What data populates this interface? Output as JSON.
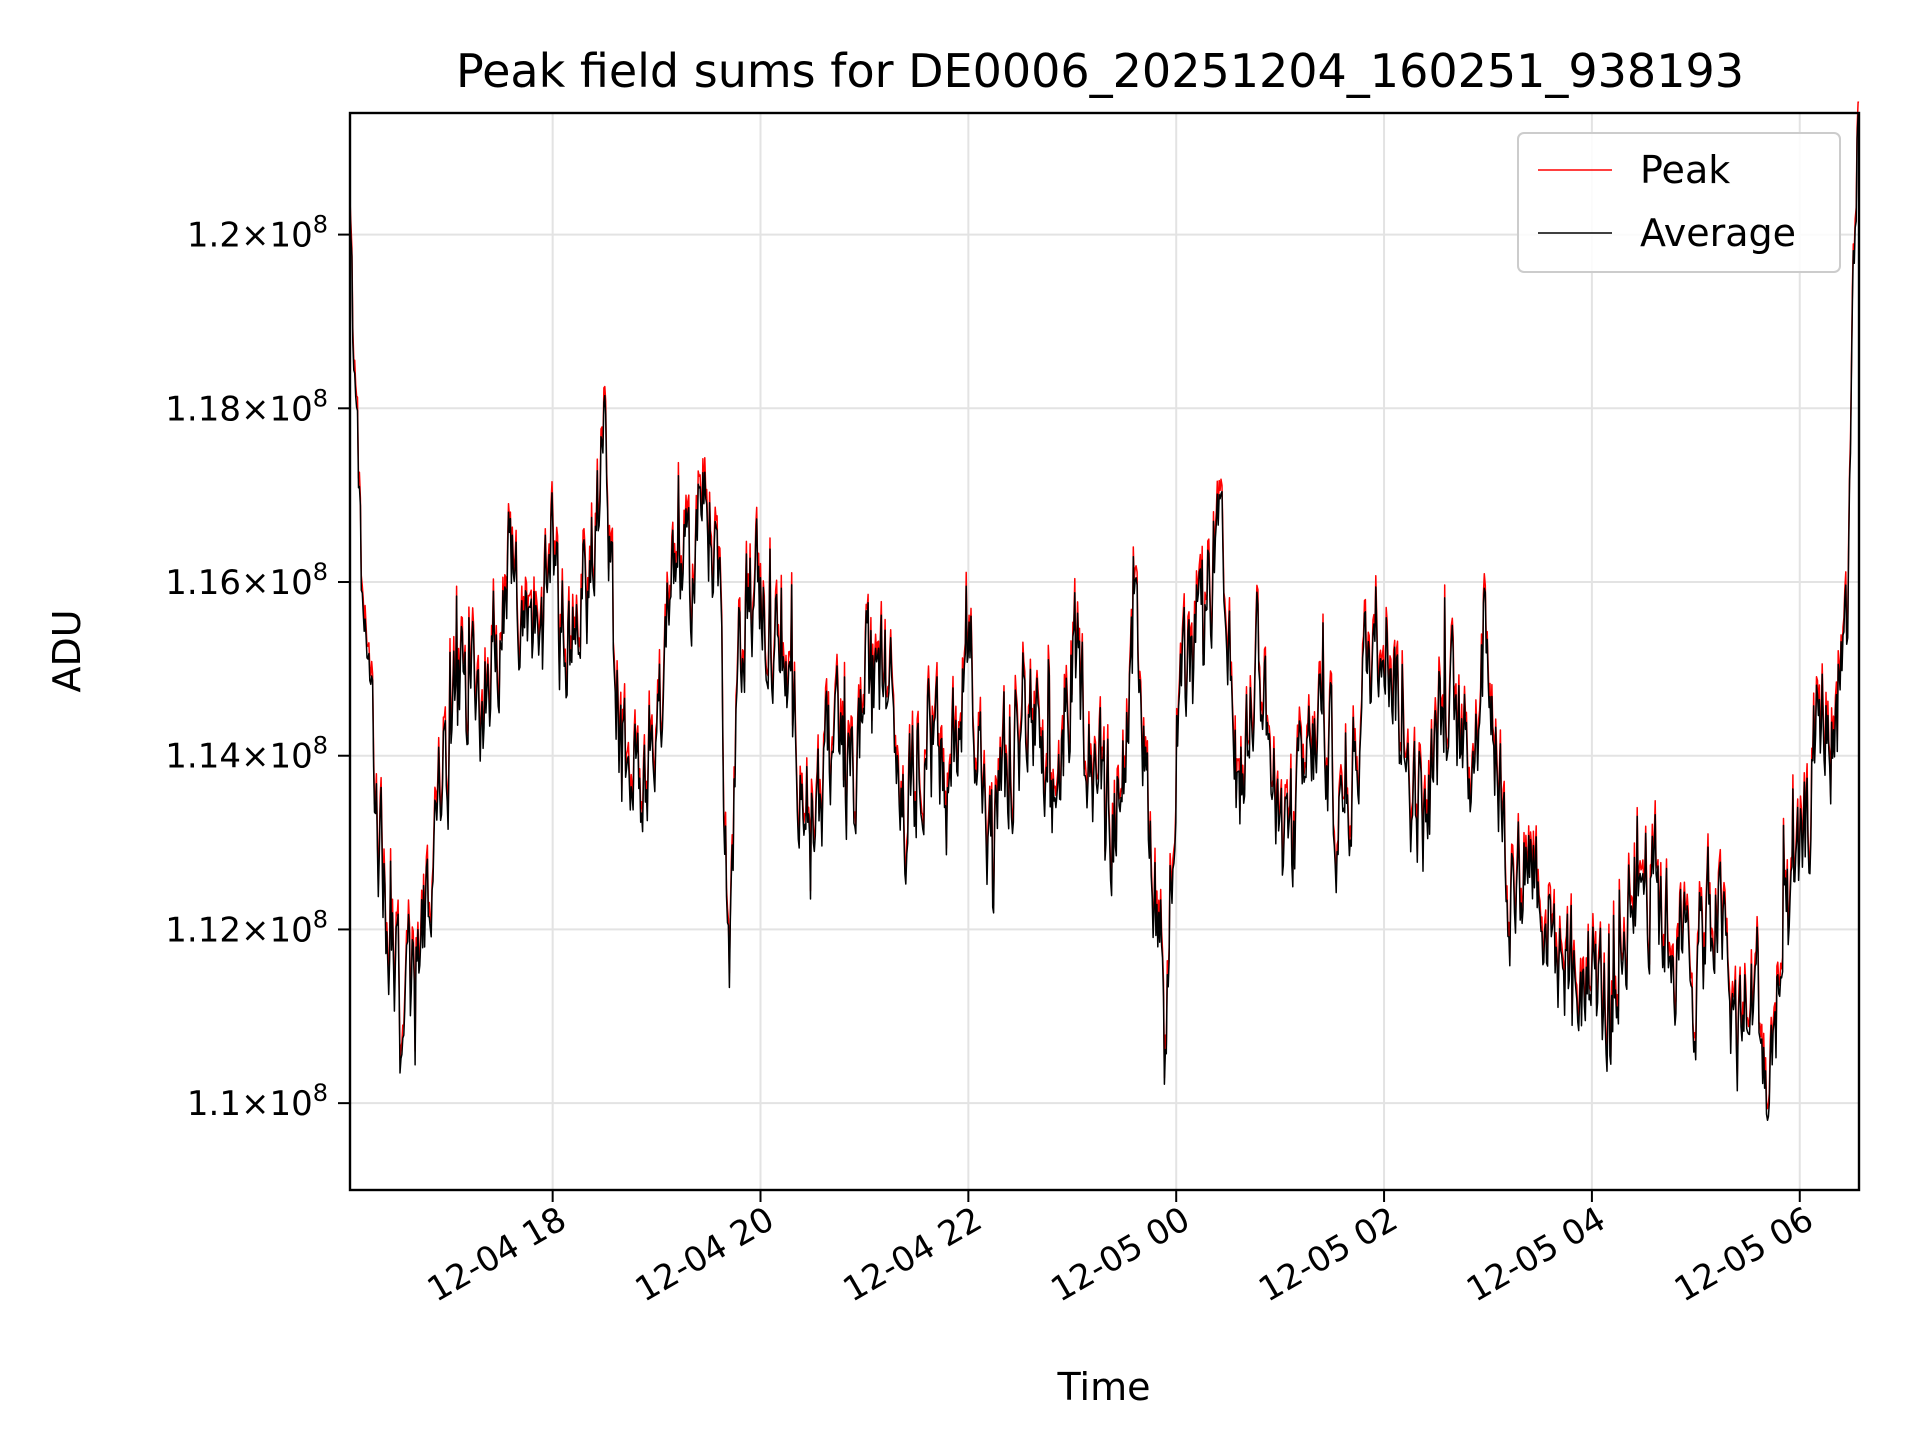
{
  "chart_data": {
    "type": "line",
    "title": "Peak field sums for DE0006_20251204_160251_938193",
    "xlabel": "Time",
    "ylabel": "ADU",
    "grid": true,
    "legend_position": "top-right",
    "x_unit": "hours since 2025-12-04 16:00",
    "xlim": [
      16.05,
      30.57
    ],
    "ylim": [
      109.0,
      121.4
    ],
    "y_unit": "1e6 ADU",
    "x_ticks": [
      {
        "value": 18,
        "label": "12-04 18"
      },
      {
        "value": 20,
        "label": "12-04 20"
      },
      {
        "value": 22,
        "label": "12-04 22"
      },
      {
        "value": 24,
        "label": "12-05 00"
      },
      {
        "value": 26,
        "label": "12-05 02"
      },
      {
        "value": 28,
        "label": "12-05 04"
      },
      {
        "value": 30,
        "label": "12-05 06"
      }
    ],
    "y_ticks": [
      {
        "value": 110,
        "base": "1.1",
        "exp": "8"
      },
      {
        "value": 112,
        "base": "1.12",
        "exp": "8"
      },
      {
        "value": 114,
        "base": "1.14",
        "exp": "8"
      },
      {
        "value": 116,
        "base": "1.16",
        "exp": "8"
      },
      {
        "value": 118,
        "base": "1.18",
        "exp": "8"
      },
      {
        "value": 120,
        "base": "1.2",
        "exp": "8"
      }
    ],
    "y_tick_times": "×10",
    "series": [
      {
        "name": "Peak",
        "color": "#ff0000",
        "offset": 0.12
      },
      {
        "name": "Average",
        "color": "#000000",
        "offset": 0.0
      }
    ],
    "x": [
      16.05,
      16.15,
      16.25,
      16.35,
      16.45,
      16.55,
      16.65,
      16.75,
      16.9,
      17.0,
      17.15,
      17.3,
      17.45,
      17.6,
      17.75,
      17.9,
      18.0,
      18.1,
      18.2,
      18.35,
      18.5,
      18.6,
      18.7,
      18.8,
      18.95,
      19.1,
      19.2,
      19.3,
      19.45,
      19.6,
      19.7,
      19.8,
      19.9,
      20.0,
      20.1,
      20.3,
      20.5,
      20.7,
      20.9,
      21.0,
      21.2,
      21.4,
      21.6,
      21.8,
      22.0,
      22.2,
      22.4,
      22.6,
      22.8,
      23.0,
      23.2,
      23.4,
      23.6,
      23.8,
      23.9,
      24.0,
      24.2,
      24.4,
      24.6,
      24.8,
      25.0,
      25.2,
      25.4,
      25.6,
      25.8,
      26.0,
      26.2,
      26.4,
      26.6,
      26.8,
      27.0,
      27.2,
      27.4,
      27.6,
      27.8,
      28.0,
      28.2,
      28.4,
      28.6,
      28.8,
      29.0,
      29.2,
      29.4,
      29.6,
      29.7,
      29.8,
      30.0,
      30.2,
      30.35,
      30.45,
      30.57
    ],
    "values": [
      120.5,
      116.5,
      114.0,
      112.7,
      111.4,
      111.2,
      111.3,
      112.0,
      113.5,
      114.0,
      115.0,
      114.5,
      115.5,
      115.8,
      116.0,
      115.0,
      116.5,
      114.8,
      115.5,
      116.0,
      117.5,
      115.0,
      114.0,
      113.8,
      114.2,
      115.2,
      116.5,
      115.8,
      117.0,
      116.2,
      111.4,
      115.3,
      116.0,
      115.8,
      115.5,
      114.5,
      113.3,
      114.0,
      113.6,
      114.8,
      115.0,
      113.2,
      114.5,
      113.4,
      115.6,
      112.8,
      113.9,
      114.5,
      113.1,
      115.2,
      114.0,
      113.2,
      115.0,
      112.5,
      111.2,
      114.3,
      115.0,
      116.5,
      113.5,
      115.4,
      112.6,
      113.5,
      114.5,
      113.0,
      114.8,
      115.8,
      114.0,
      113.2,
      114.8,
      113.8,
      115.3,
      112.5,
      113.0,
      112.0,
      111.3,
      111.5,
      111.0,
      112.8,
      112.5,
      111.8,
      111.5,
      112.3,
      110.8,
      111.3,
      109.9,
      111.5,
      112.5,
      114.5,
      114.2,
      115.5,
      121.3
    ],
    "noise_amplitude": 0.8,
    "samples": 1600
  }
}
